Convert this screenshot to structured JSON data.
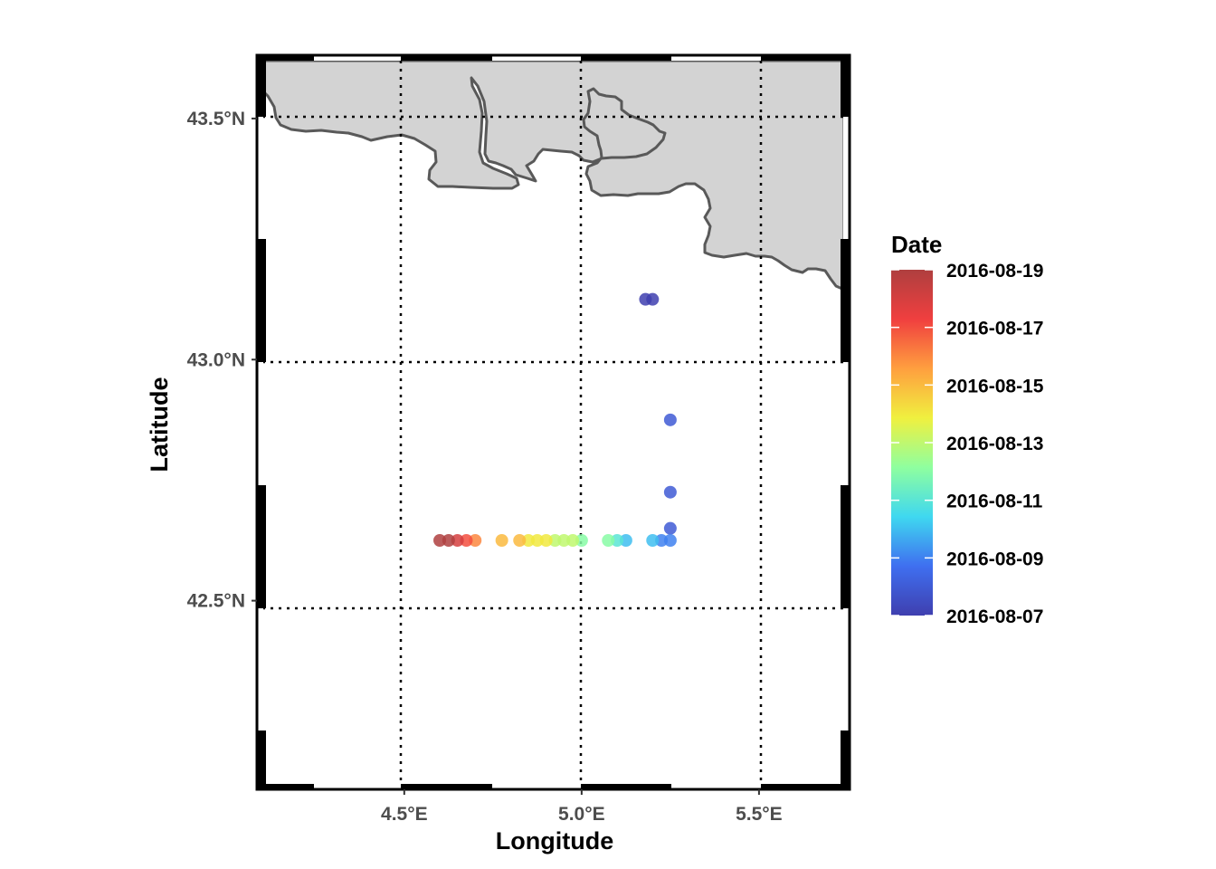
{
  "chart_data": {
    "type": "scatter",
    "map": {
      "coastline": "Gulf of Lion (Mediterranean coast)",
      "land_color": "#d3d3d3",
      "coast_color": "#595959",
      "xlim": [
        4.1,
        5.74
      ],
      "ylim": [
        42.12,
        43.62
      ],
      "gridlines": true,
      "grid_style": "dotted",
      "frame": "black-white graticule border"
    },
    "xlabel": "Longitude",
    "ylabel": "Latitude",
    "x_ticks": [
      {
        "value": 4.5,
        "label": "4.5°E"
      },
      {
        "value": 5.0,
        "label": "5.0°E"
      },
      {
        "value": 5.5,
        "label": "5.5°E"
      }
    ],
    "y_ticks": [
      {
        "value": 42.5,
        "label": "42.5°N"
      },
      {
        "value": 43.0,
        "label": "43.0°N"
      },
      {
        "value": 43.5,
        "label": "43.5°N"
      }
    ],
    "color_scale": {
      "title": "Date",
      "palette": "jet",
      "colors": [
        "#3f3faf",
        "#3f6ff0",
        "#3fd8f0",
        "#8fff9f",
        "#f0f03f",
        "#ff9f3f",
        "#f03f3f",
        "#af3f3f"
      ],
      "min": "2016-08-07",
      "max": "2016-08-19",
      "labels": [
        "2016-08-19",
        "2016-08-17",
        "2016-08-15",
        "2016-08-13",
        "2016-08-11",
        "2016-08-09",
        "2016-08-07"
      ],
      "legend_position": "right"
    },
    "points": [
      {
        "lon": 5.18,
        "lat": 43.125,
        "date": "2016-08-07"
      },
      {
        "lon": 5.2,
        "lat": 43.125,
        "date": "2016-08-07"
      },
      {
        "lon": 5.25,
        "lat": 42.875,
        "date": "2016-08-08"
      },
      {
        "lon": 5.25,
        "lat": 42.725,
        "date": "2016-08-08"
      },
      {
        "lon": 5.25,
        "lat": 42.65,
        "date": "2016-08-08"
      },
      {
        "lon": 5.25,
        "lat": 42.625,
        "date": "2016-08-09"
      },
      {
        "lon": 5.225,
        "lat": 42.625,
        "date": "2016-08-09"
      },
      {
        "lon": 5.2,
        "lat": 42.625,
        "date": "2016-08-10"
      },
      {
        "lon": 5.125,
        "lat": 42.625,
        "date": "2016-08-10"
      },
      {
        "lon": 5.1,
        "lat": 42.625,
        "date": "2016-08-11"
      },
      {
        "lon": 5.075,
        "lat": 42.625,
        "date": "2016-08-12"
      },
      {
        "lon": 5.0,
        "lat": 42.625,
        "date": "2016-08-12"
      },
      {
        "lon": 4.975,
        "lat": 42.625,
        "date": "2016-08-13"
      },
      {
        "lon": 4.95,
        "lat": 42.625,
        "date": "2016-08-13"
      },
      {
        "lon": 4.925,
        "lat": 42.625,
        "date": "2016-08-13"
      },
      {
        "lon": 4.9,
        "lat": 42.625,
        "date": "2016-08-14"
      },
      {
        "lon": 4.875,
        "lat": 42.625,
        "date": "2016-08-14"
      },
      {
        "lon": 4.85,
        "lat": 42.625,
        "date": "2016-08-14"
      },
      {
        "lon": 4.825,
        "lat": 42.625,
        "date": "2016-08-15"
      },
      {
        "lon": 4.775,
        "lat": 42.625,
        "date": "2016-08-15"
      },
      {
        "lon": 4.7,
        "lat": 42.625,
        "date": "2016-08-16"
      },
      {
        "lon": 4.675,
        "lat": 42.625,
        "date": "2016-08-17"
      },
      {
        "lon": 4.65,
        "lat": 42.625,
        "date": "2016-08-18"
      },
      {
        "lon": 4.625,
        "lat": 42.625,
        "date": "2016-08-19"
      },
      {
        "lon": 4.6,
        "lat": 42.625,
        "date": "2016-08-19"
      }
    ]
  }
}
